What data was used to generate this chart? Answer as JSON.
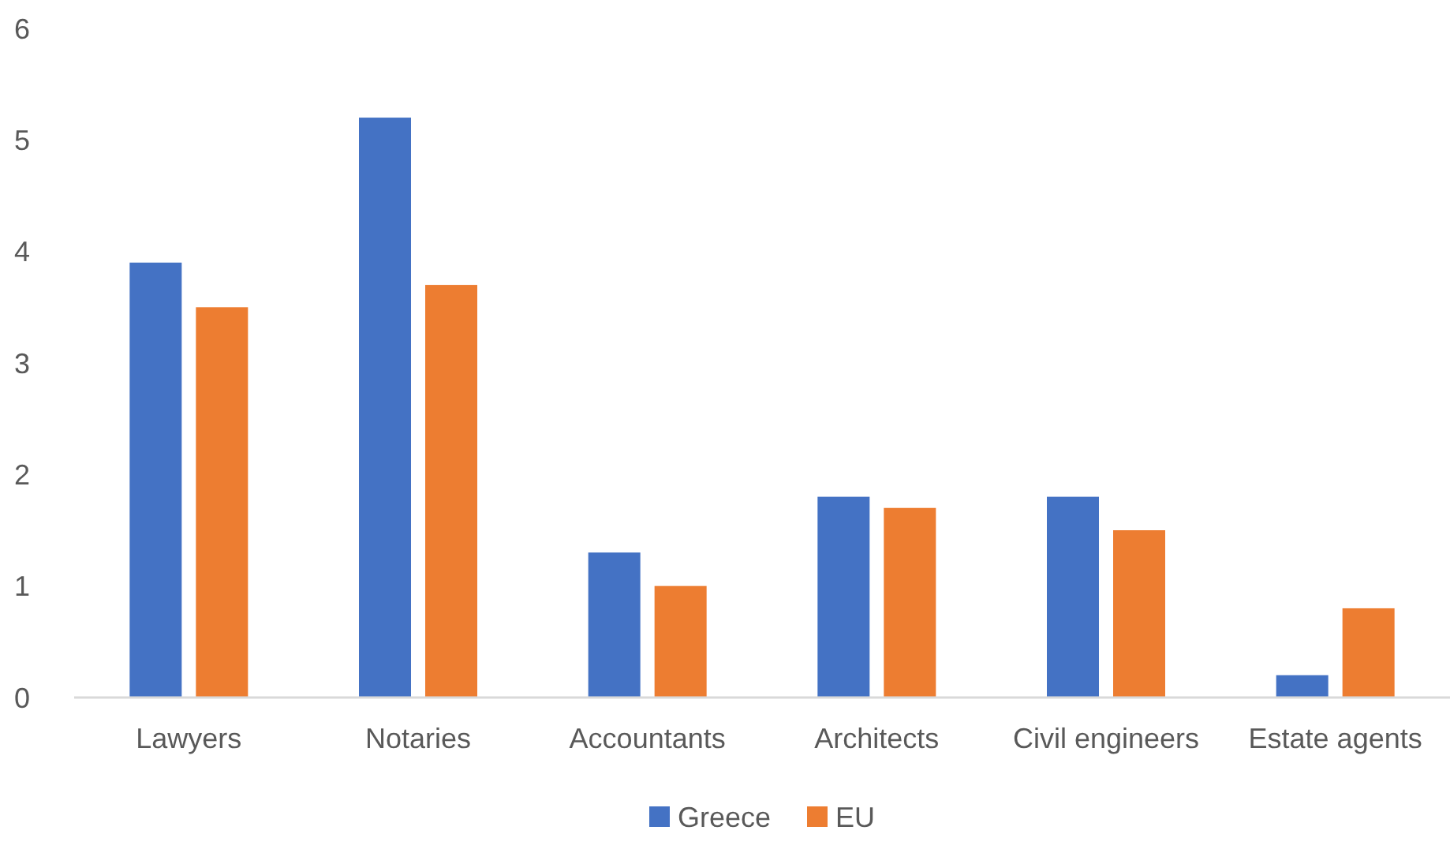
{
  "chart_data": {
    "type": "bar",
    "categories": [
      "Lawyers",
      "Notaries",
      "Accountants",
      "Architects",
      "Civil engineers",
      "Estate agents"
    ],
    "series": [
      {
        "name": "Greece",
        "color": "#4472c4",
        "values": [
          3.9,
          5.2,
          1.3,
          1.8,
          1.8,
          0.2
        ]
      },
      {
        "name": "EU",
        "color": "#ed7d31",
        "values": [
          3.5,
          3.7,
          1.0,
          1.7,
          1.5,
          0.8
        ]
      }
    ],
    "ylim": [
      0,
      6
    ],
    "yticks": [
      0,
      1,
      2,
      3,
      4,
      5,
      6
    ],
    "grid": false,
    "legend": "bottom"
  }
}
